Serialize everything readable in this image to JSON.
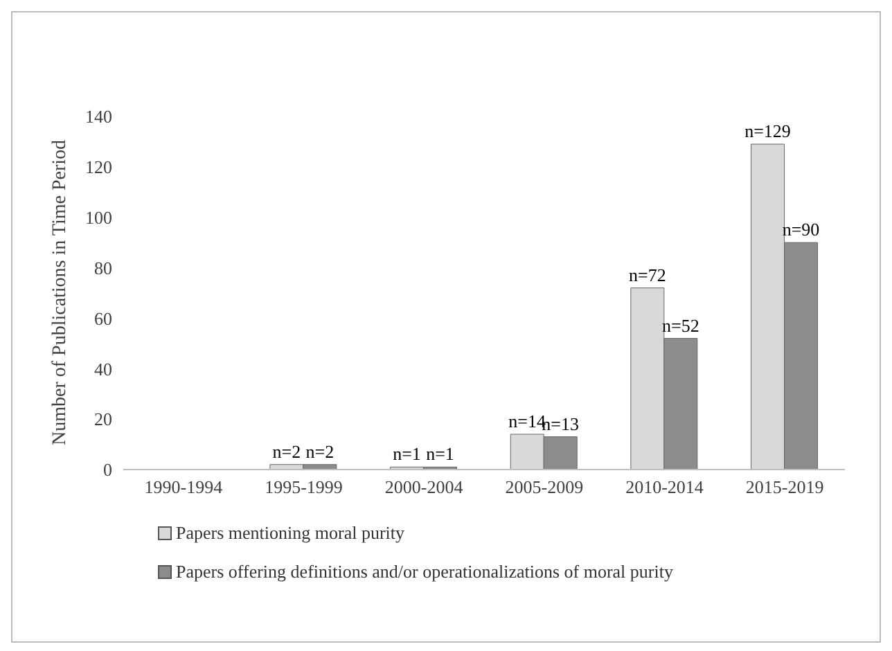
{
  "chart_data": {
    "type": "bar",
    "ylabel": "Number of Publications in Time Period",
    "categories": [
      "1990-1994",
      "1995-1999",
      "2000-2004",
      "2005-2009",
      "2010-2014",
      "2015-2019"
    ],
    "series": [
      {
        "name": "Papers mentioning moral purity",
        "color": "#d9d9d9",
        "values": [
          0,
          2,
          1,
          14,
          72,
          129
        ],
        "value_labels": [
          null,
          "n=2",
          "n=1",
          "n=14",
          "n=72",
          "n=129"
        ]
      },
      {
        "name": "Papers offering definitions and/or operationalizations of moral purity",
        "color": "#8c8c8c",
        "values": [
          0,
          2,
          1,
          13,
          52,
          90
        ],
        "value_labels": [
          null,
          "n=2",
          "n=1",
          "n=13",
          "n=52",
          "n=90"
        ]
      }
    ],
    "ylim": [
      0,
      140
    ],
    "yticks": [
      0,
      20,
      40,
      60,
      80,
      100,
      120,
      140
    ],
    "grid": false,
    "legend": "bottom"
  }
}
